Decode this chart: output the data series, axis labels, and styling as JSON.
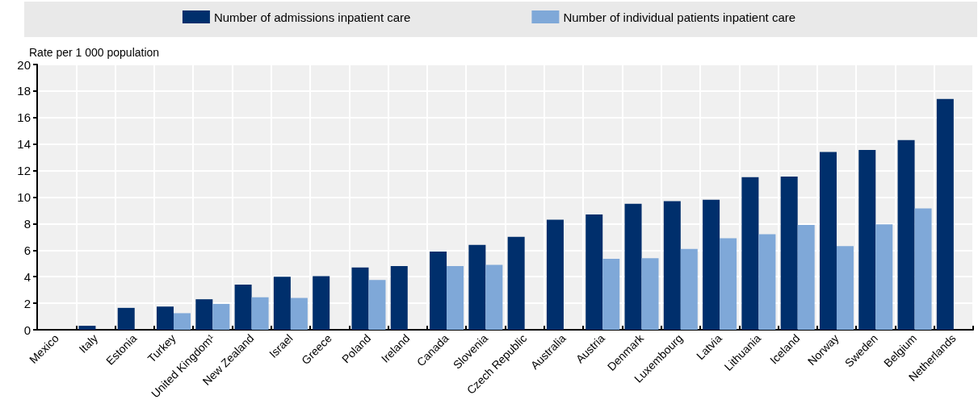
{
  "chart_data": {
    "type": "bar",
    "ylabel": "Rate per 1 000 population",
    "categories": [
      "Mexico",
      "Italy",
      "Estonia",
      "Turkey",
      "United Kingdom¹",
      "New Zealand",
      "Israel",
      "Greece",
      "Poland",
      "Ireland",
      "Canada",
      "Slovenia",
      "Czech Republic",
      "Australia",
      "Austria",
      "Denmark",
      "Luxembourg",
      "Latvia",
      "Lithuania",
      "Iceland",
      "Norway",
      "Sweden",
      "Belgium",
      "Netherlands"
    ],
    "series": [
      {
        "name": "Number of admissions inpatient care",
        "color": "#002f6c",
        "values": [
          0,
          0.3,
          1.65,
          1.75,
          2.3,
          3.4,
          4.0,
          4.05,
          4.7,
          4.8,
          5.9,
          6.4,
          7.0,
          8.3,
          8.7,
          9.5,
          9.7,
          9.8,
          11.5,
          11.55,
          13.4,
          13.55,
          14.3,
          17.4
        ]
      },
      {
        "name": "Number of individual patients inpatient care",
        "color": "#7fa8d8",
        "values": [
          null,
          null,
          null,
          1.25,
          1.95,
          2.45,
          2.4,
          null,
          3.75,
          null,
          4.8,
          4.9,
          null,
          null,
          5.35,
          5.4,
          6.1,
          6.9,
          7.2,
          7.9,
          6.3,
          7.95,
          9.15,
          null
        ]
      }
    ],
    "ylim": [
      0,
      20
    ],
    "yticks": [
      0,
      2,
      4,
      6,
      8,
      10,
      12,
      14,
      16,
      18,
      20
    ],
    "grid": true,
    "legend": "top"
  }
}
